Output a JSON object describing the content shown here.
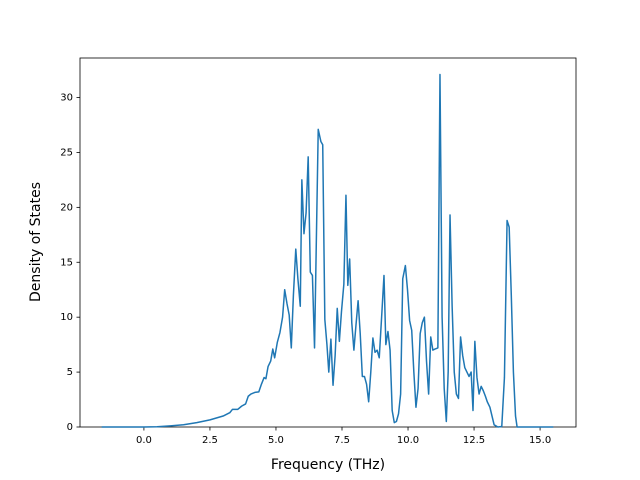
{
  "chart_data": {
    "type": "line",
    "xlabel": "Frequency (THz)",
    "ylabel": "Density of States",
    "x": [
      -1.6,
      -0.5,
      0,
      0.5,
      1,
      1.5,
      2,
      2.5,
      3,
      3.25,
      3.35,
      3.55,
      3.7,
      3.85,
      3.95,
      4.05,
      4.2,
      4.35,
      4.45,
      4.55,
      4.62,
      4.7,
      4.8,
      4.88,
      4.95,
      5.05,
      5.15,
      5.25,
      5.33,
      5.42,
      5.5,
      5.58,
      5.66,
      5.75,
      5.83,
      5.92,
      5.98,
      6.06,
      6.14,
      6.22,
      6.3,
      6.38,
      6.46,
      6.6,
      6.7,
      6.77,
      6.85,
      6.93,
      7.0,
      7.08,
      7.16,
      7.24,
      7.32,
      7.4,
      7.48,
      7.57,
      7.65,
      7.72,
      7.79,
      7.87,
      7.95,
      8.03,
      8.11,
      8.19,
      8.27,
      8.35,
      8.43,
      8.51,
      8.59,
      8.67,
      8.75,
      8.83,
      8.91,
      9.0,
      9.09,
      9.16,
      9.24,
      9.32,
      9.4,
      9.48,
      9.56,
      9.64,
      9.72,
      9.8,
      9.9,
      9.98,
      10.06,
      10.14,
      10.22,
      10.3,
      10.38,
      10.46,
      10.54,
      10.62,
      10.7,
      10.78,
      10.86,
      10.94,
      11.02,
      11.13,
      11.21,
      11.29,
      11.37,
      11.45,
      11.52,
      11.59,
      11.67,
      11.75,
      11.83,
      11.91,
      11.99,
      12.07,
      12.15,
      12.23,
      12.31,
      12.39,
      12.46,
      12.53,
      12.61,
      12.69,
      12.77,
      12.85,
      12.93,
      13.0,
      13.1,
      13.18,
      13.26,
      13.4,
      13.55,
      13.65,
      13.75,
      13.83,
      13.91,
      13.99,
      14.07,
      14.13,
      14.4,
      15.0,
      15.5
    ],
    "series": [
      {
        "color": "#1f77b4",
        "values": [
          0,
          0,
          0,
          0.02,
          0.1,
          0.2,
          0.4,
          0.65,
          1.0,
          1.3,
          1.6,
          1.6,
          1.9,
          2.1,
          2.8,
          3.0,
          3.15,
          3.2,
          3.9,
          4.5,
          4.4,
          5.5,
          6.0,
          7.1,
          6.3,
          7.7,
          8.6,
          10,
          12.5,
          11.2,
          10.2,
          7.2,
          12,
          16.2,
          13.5,
          11,
          22.5,
          17.6,
          19.5,
          24.6,
          14.1,
          13.8,
          7.2,
          27.1,
          26,
          25.7,
          9.8,
          7.5,
          5.0,
          8.0,
          3.8,
          6.5,
          10.8,
          7.8,
          10.5,
          13,
          21.1,
          12.9,
          15.3,
          9.5,
          7.0,
          9.3,
          11.5,
          8.5,
          4.6,
          4.6,
          3.9,
          2.3,
          5.0,
          8.1,
          6.8,
          7.0,
          6.3,
          10,
          13.8,
          7.5,
          8.7,
          7.0,
          1.5,
          0.4,
          0.5,
          1.2,
          3.0,
          13.5,
          14.7,
          12.5,
          9.7,
          8.8,
          5,
          1.8,
          3.5,
          8.5,
          9.5,
          10.0,
          6,
          3,
          8.2,
          7,
          7.1,
          7.2,
          32.1,
          10,
          3.5,
          0.5,
          5,
          19.3,
          11,
          5,
          3,
          2.6,
          8.2,
          6.5,
          5.4,
          5.0,
          4.6,
          5.0,
          1.5,
          7.8,
          4.5,
          3.0,
          3.7,
          3.3,
          2.8,
          2.3,
          1.8,
          1.0,
          0.2,
          0,
          0.05,
          4.5,
          18.8,
          18.2,
          12,
          5,
          1,
          0,
          0,
          0,
          0
        ]
      }
    ],
    "xlim": [
      -2.42,
      16.36
    ],
    "ylim": [
      0,
      33.6
    ],
    "xticks": [
      {
        "value": 0,
        "label": "0.0"
      },
      2.5,
      {
        "value": 5,
        "label": "5.0"
      },
      7.5,
      {
        "value": 10,
        "label": "10.0"
      },
      12.5,
      {
        "value": 15,
        "label": "15.0"
      }
    ],
    "yticks": [
      0,
      5,
      10,
      15,
      20,
      25,
      30
    ]
  }
}
